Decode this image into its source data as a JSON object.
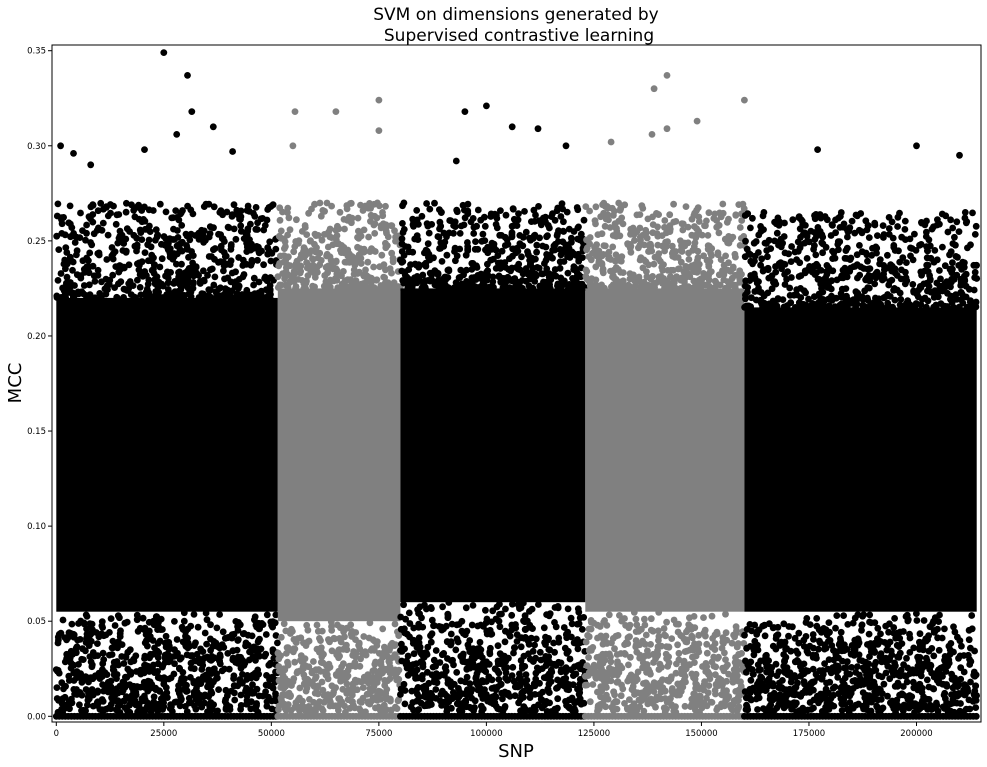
{
  "chart_data": {
    "type": "scatter",
    "title_lines": [
      "SVM on dimensions generated by",
      "Supervised contrastive learning"
    ],
    "xlabel": "SNP",
    "ylabel": "MCC",
    "xlim": [
      -1000,
      215000
    ],
    "ylim": [
      -0.003,
      0.353
    ],
    "x_ticks": [
      0,
      25000,
      50000,
      75000,
      100000,
      125000,
      150000,
      175000,
      200000
    ],
    "x_tick_labels": [
      "0",
      "25000",
      "50000",
      "75000",
      "100000",
      "125000",
      "150000",
      "175000",
      "200000"
    ],
    "y_ticks": [
      0.0,
      0.05,
      0.1,
      0.15,
      0.2,
      0.25,
      0.3,
      0.35
    ],
    "y_tick_labels": [
      "0.00",
      "0.05",
      "0.10",
      "0.15",
      "0.20",
      "0.25",
      "0.30",
      "0.35"
    ],
    "grid": false,
    "legend": "none",
    "colors": {
      "black": "#000000",
      "gray": "#808080"
    },
    "segments": [
      {
        "x_range": [
          0,
          51500
        ],
        "color": "black",
        "dense_range": [
          0.055,
          0.22
        ],
        "sparse_max": 0.27
      },
      {
        "x_range": [
          51500,
          80000
        ],
        "color": "gray",
        "dense_range": [
          0.05,
          0.225
        ],
        "sparse_max": 0.27
      },
      {
        "x_range": [
          80000,
          123000
        ],
        "color": "black",
        "dense_range": [
          0.06,
          0.225
        ],
        "sparse_max": 0.27
      },
      {
        "x_range": [
          123000,
          160000
        ],
        "color": "gray",
        "dense_range": [
          0.055,
          0.225
        ],
        "sparse_max": 0.27
      },
      {
        "x_range": [
          160000,
          214000
        ],
        "color": "black",
        "dense_range": [
          0.055,
          0.215
        ],
        "sparse_max": 0.265
      }
    ],
    "outliers": [
      {
        "x": 25000,
        "y": 0.349,
        "color": "black"
      },
      {
        "x": 30500,
        "y": 0.337,
        "color": "black"
      },
      {
        "x": 31500,
        "y": 0.318,
        "color": "black"
      },
      {
        "x": 36500,
        "y": 0.31,
        "color": "black"
      },
      {
        "x": 1000,
        "y": 0.3,
        "color": "black"
      },
      {
        "x": 4000,
        "y": 0.296,
        "color": "black"
      },
      {
        "x": 20500,
        "y": 0.298,
        "color": "black"
      },
      {
        "x": 28000,
        "y": 0.306,
        "color": "black"
      },
      {
        "x": 41000,
        "y": 0.297,
        "color": "black"
      },
      {
        "x": 55500,
        "y": 0.318,
        "color": "gray"
      },
      {
        "x": 55000,
        "y": 0.3,
        "color": "gray"
      },
      {
        "x": 65000,
        "y": 0.318,
        "color": "gray"
      },
      {
        "x": 75000,
        "y": 0.324,
        "color": "gray"
      },
      {
        "x": 75000,
        "y": 0.308,
        "color": "gray"
      },
      {
        "x": 95000,
        "y": 0.318,
        "color": "black"
      },
      {
        "x": 100000,
        "y": 0.321,
        "color": "black"
      },
      {
        "x": 106000,
        "y": 0.31,
        "color": "black"
      },
      {
        "x": 112000,
        "y": 0.309,
        "color": "black"
      },
      {
        "x": 118500,
        "y": 0.3,
        "color": "black"
      },
      {
        "x": 129000,
        "y": 0.302,
        "color": "gray"
      },
      {
        "x": 139000,
        "y": 0.33,
        "color": "gray"
      },
      {
        "x": 142000,
        "y": 0.337,
        "color": "gray"
      },
      {
        "x": 142000,
        "y": 0.309,
        "color": "gray"
      },
      {
        "x": 138500,
        "y": 0.306,
        "color": "gray"
      },
      {
        "x": 149000,
        "y": 0.313,
        "color": "gray"
      },
      {
        "x": 160000,
        "y": 0.324,
        "color": "gray"
      },
      {
        "x": 177000,
        "y": 0.298,
        "color": "black"
      },
      {
        "x": 200000,
        "y": 0.3,
        "color": "black"
      },
      {
        "x": 210000,
        "y": 0.295,
        "color": "black"
      },
      {
        "x": 8000,
        "y": 0.29,
        "color": "black"
      },
      {
        "x": 93000,
        "y": 0.292,
        "color": "black"
      }
    ]
  }
}
